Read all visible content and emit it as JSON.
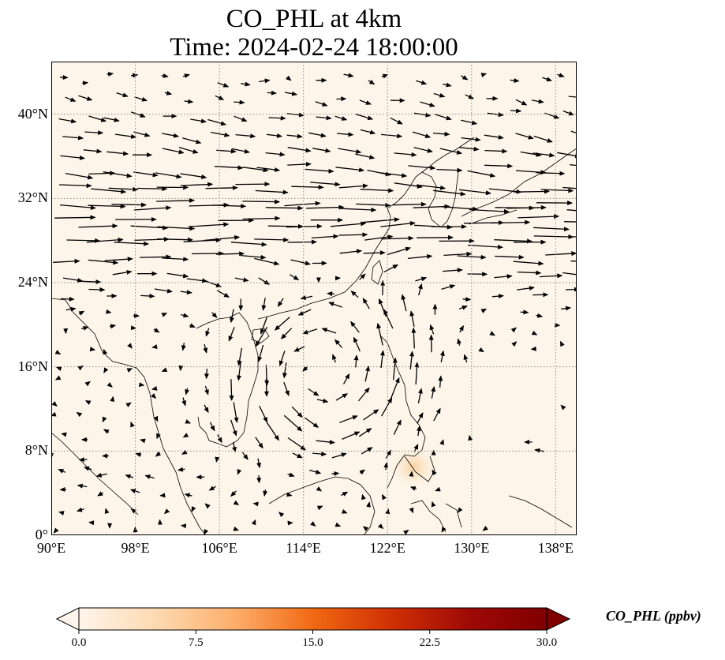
{
  "title": {
    "line1": "CO_PHL at 4km",
    "line2": "Time: 2024-02-24 18:00:00"
  },
  "map": {
    "lon_range": [
      90,
      140
    ],
    "lat_range": [
      0,
      45
    ],
    "lat_ticks": [
      {
        "value": 0,
        "label": "0°"
      },
      {
        "value": 8,
        "label": "8°N"
      },
      {
        "value": 16,
        "label": "16°N"
      },
      {
        "value": 24,
        "label": "24°N"
      },
      {
        "value": 32,
        "label": "32°N"
      },
      {
        "value": 40,
        "label": "40°N"
      }
    ],
    "lon_ticks": [
      {
        "value": 90,
        "label": "90°E"
      },
      {
        "value": 98,
        "label": "98°E"
      },
      {
        "value": 106,
        "label": "106°E"
      },
      {
        "value": 114,
        "label": "114°E"
      },
      {
        "value": 122,
        "label": "122°E"
      },
      {
        "value": 130,
        "label": "130°E"
      },
      {
        "value": 138,
        "label": "138°E"
      }
    ],
    "field_background": "#fdf5e9",
    "hotspot": {
      "lon": 124.5,
      "lat": 6.5,
      "color": "#f9cf9a"
    },
    "gridline_color": "#888888",
    "vector_color": "#000000",
    "coast_color": "#000000"
  },
  "colorbar": {
    "label": "CO_PHL (ppbv)",
    "ticks": [
      "0.0",
      "7.5",
      "15.0",
      "22.5",
      "30.0"
    ],
    "colors": [
      "#fff5eb",
      "#fdd9b0",
      "#fdae6b",
      "#f16913",
      "#d03004",
      "#9e0a06",
      "#7f0000"
    ]
  }
}
